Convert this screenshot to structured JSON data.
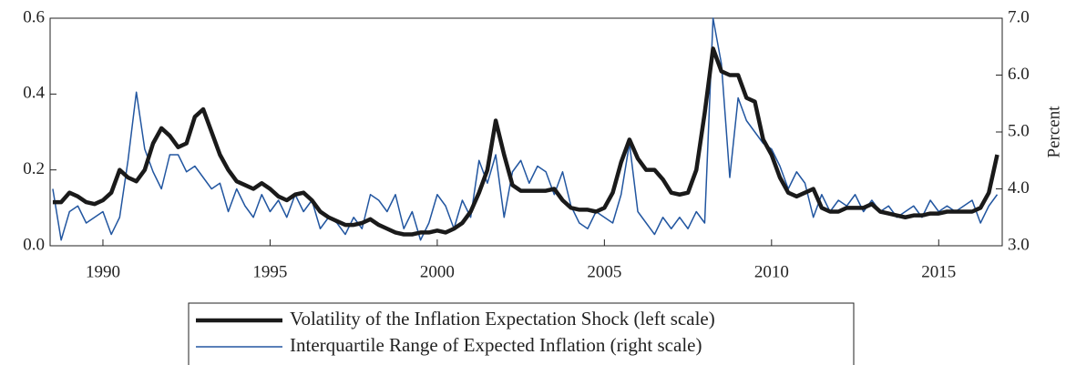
{
  "chart_data": {
    "type": "line",
    "y2label": "Percent",
    "x": [
      1988.5,
      1988.75,
      1989,
      1989.25,
      1989.5,
      1989.75,
      1990,
      1990.25,
      1990.5,
      1990.75,
      1991,
      1991.25,
      1991.5,
      1991.75,
      1992,
      1992.25,
      1992.5,
      1992.75,
      1993,
      1993.25,
      1993.5,
      1993.75,
      1994,
      1994.25,
      1994.5,
      1994.75,
      1995,
      1995.25,
      1995.5,
      1995.75,
      1996,
      1996.25,
      1996.5,
      1996.75,
      1997,
      1997.25,
      1997.5,
      1997.75,
      1998,
      1998.25,
      1998.5,
      1998.75,
      1999,
      1999.25,
      1999.5,
      1999.75,
      2000,
      2000.25,
      2000.5,
      2000.75,
      2001,
      2001.25,
      2001.5,
      2001.75,
      2002,
      2002.25,
      2002.5,
      2002.75,
      2003,
      2003.25,
      2003.5,
      2003.75,
      2004,
      2004.25,
      2004.5,
      2004.75,
      2005,
      2005.25,
      2005.5,
      2005.75,
      2006,
      2006.25,
      2006.5,
      2006.75,
      2007,
      2007.25,
      2007.5,
      2007.75,
      2008,
      2008.25,
      2008.5,
      2008.75,
      2009,
      2009.25,
      2009.5,
      2009.75,
      2010,
      2010.25,
      2010.5,
      2010.75,
      2011,
      2011.25,
      2011.5,
      2011.75,
      2012,
      2012.25,
      2012.5,
      2012.75,
      2013,
      2013.25,
      2013.5,
      2013.75,
      2014,
      2014.25,
      2014.5,
      2014.75,
      2015,
      2015.25,
      2015.5,
      2015.75,
      2016,
      2016.25,
      2016.5,
      2016.75
    ],
    "series": [
      {
        "name": "Volatility of the Inflation Expectation Shock (left scale)",
        "color": "#1a1a1a",
        "axis": "y",
        "values": [
          0.115,
          0.115,
          0.14,
          0.13,
          0.115,
          0.11,
          0.12,
          0.14,
          0.2,
          0.18,
          0.17,
          0.2,
          0.27,
          0.31,
          0.29,
          0.26,
          0.27,
          0.34,
          0.36,
          0.3,
          0.24,
          0.2,
          0.17,
          0.16,
          0.15,
          0.165,
          0.15,
          0.13,
          0.12,
          0.135,
          0.14,
          0.12,
          0.09,
          0.075,
          0.065,
          0.055,
          0.055,
          0.06,
          0.07,
          0.055,
          0.045,
          0.035,
          0.03,
          0.03,
          0.035,
          0.035,
          0.04,
          0.035,
          0.045,
          0.06,
          0.09,
          0.14,
          0.2,
          0.33,
          0.24,
          0.16,
          0.145,
          0.145,
          0.145,
          0.145,
          0.15,
          0.12,
          0.1,
          0.095,
          0.095,
          0.09,
          0.1,
          0.14,
          0.22,
          0.28,
          0.23,
          0.2,
          0.2,
          0.175,
          0.14,
          0.135,
          0.14,
          0.2,
          0.35,
          0.52,
          0.46,
          0.45,
          0.45,
          0.39,
          0.38,
          0.28,
          0.24,
          0.18,
          0.14,
          0.13,
          0.14,
          0.15,
          0.1,
          0.09,
          0.09,
          0.1,
          0.1,
          0.1,
          0.11,
          0.09,
          0.085,
          0.08,
          0.075,
          0.08,
          0.08,
          0.085,
          0.085,
          0.09,
          0.09,
          0.09,
          0.09,
          0.1,
          0.14,
          0.24
        ]
      },
      {
        "name": "Interquartile Range of Expected Inflation (right scale)",
        "color": "#2256a0",
        "axis": "y2",
        "values": [
          4.0,
          3.1,
          3.6,
          3.7,
          3.4,
          3.5,
          3.6,
          3.2,
          3.5,
          4.5,
          5.7,
          4.7,
          4.3,
          4.0,
          4.6,
          4.6,
          4.3,
          4.4,
          4.2,
          4.0,
          4.1,
          3.6,
          4.0,
          3.7,
          3.5,
          3.9,
          3.6,
          3.8,
          3.5,
          3.9,
          3.6,
          3.8,
          3.3,
          3.5,
          3.4,
          3.2,
          3.5,
          3.3,
          3.9,
          3.8,
          3.6,
          3.9,
          3.3,
          3.6,
          3.1,
          3.4,
          3.9,
          3.7,
          3.3,
          3.8,
          3.5,
          4.5,
          4.1,
          4.6,
          3.5,
          4.3,
          4.5,
          4.1,
          4.4,
          4.3,
          3.9,
          4.3,
          3.7,
          3.4,
          3.3,
          3.6,
          3.5,
          3.4,
          3.9,
          4.8,
          3.6,
          3.4,
          3.2,
          3.5,
          3.3,
          3.5,
          3.3,
          3.6,
          3.4,
          7.0,
          6.2,
          4.2,
          5.6,
          5.2,
          5.0,
          4.8,
          4.7,
          4.4,
          4.0,
          4.3,
          4.1,
          3.5,
          3.9,
          3.6,
          3.8,
          3.7,
          3.9,
          3.6,
          3.8,
          3.6,
          3.7,
          3.5,
          3.6,
          3.7,
          3.5,
          3.8,
          3.6,
          3.7,
          3.6,
          3.7,
          3.8,
          3.4,
          3.7,
          3.9
        ]
      }
    ],
    "xlim": [
      1988.42,
      2016.9
    ],
    "xticks": [
      1990,
      1995,
      2000,
      2005,
      2010,
      2015
    ],
    "ylim": [
      0,
      0.6
    ],
    "yticks": [
      {
        "value": 0,
        "label": "0.0"
      },
      0.2,
      0.4,
      0.6
    ],
    "y2lim": [
      3.0,
      7.0
    ],
    "y2ticks": [
      {
        "value": 3.0,
        "label": "3.0"
      },
      {
        "value": 4.0,
        "label": "4.0"
      },
      {
        "value": 5.0,
        "label": "5.0"
      },
      {
        "value": 6.0,
        "label": "6.0"
      },
      {
        "value": 7.0,
        "label": "7.0"
      }
    ],
    "legend": "bottom"
  }
}
